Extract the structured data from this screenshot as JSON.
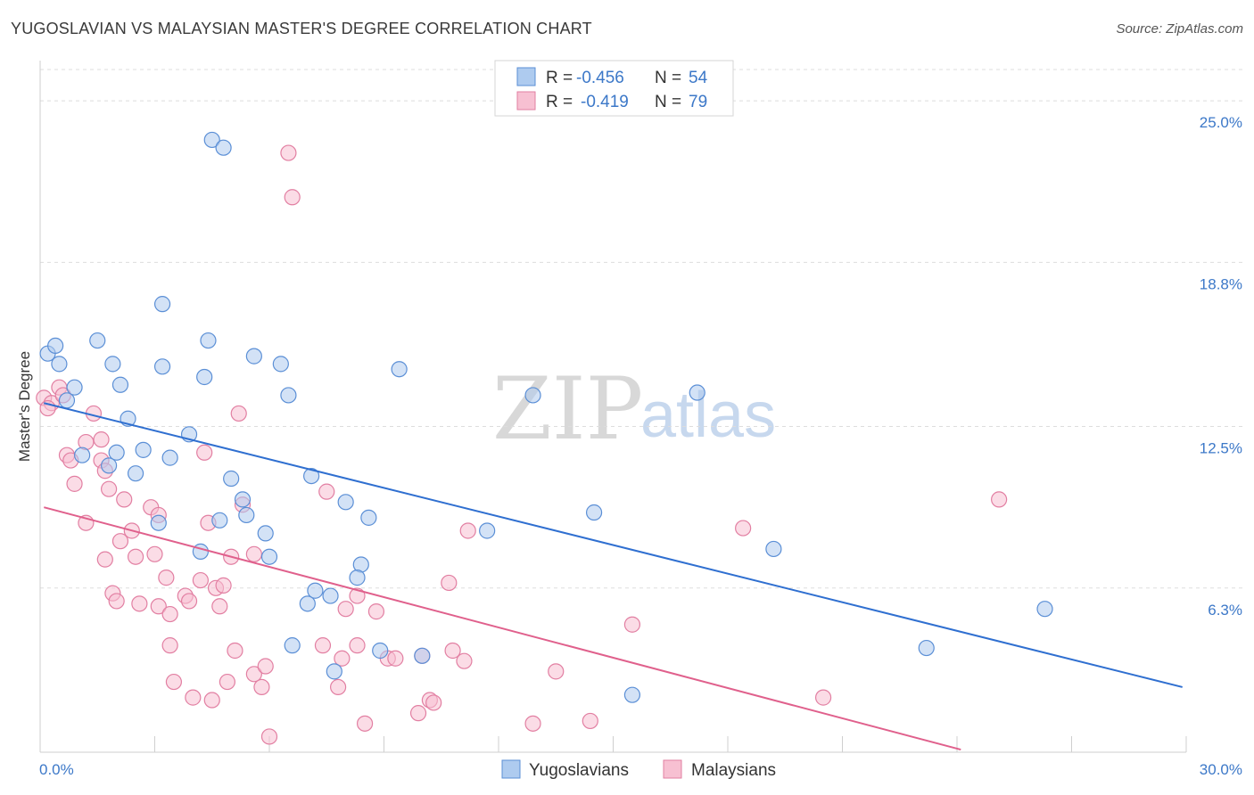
{
  "title": "YUGOSLAVIAN VS MALAYSIAN MASTER'S DEGREE CORRELATION CHART",
  "source": "Source: ZipAtlas.com",
  "watermark": {
    "zip": "ZIP",
    "atlas": "atlas"
  },
  "colors": {
    "blue_fill": "#aecbef",
    "blue_stroke": "#5b8fd6",
    "blue_line": "#2f6fd0",
    "pink_fill": "#f7c0d2",
    "pink_stroke": "#e27fa2",
    "pink_line": "#e0608c",
    "grid": "#dddddd",
    "axis_text": "#3c78c8"
  },
  "legend": {
    "rows": [
      {
        "r_label": "R = ",
        "r_value": "-0.456",
        "n_label": "N = ",
        "n_value": "54"
      },
      {
        "r_label": "R = ",
        "r_value": "-0.419",
        "n_label": "N = ",
        "n_value": "79"
      }
    ]
  },
  "chart_data": {
    "type": "scatter",
    "xlabel": "",
    "ylabel": "Master's Degree",
    "xlim": [
      0,
      30
    ],
    "ylim": [
      0,
      26.2
    ],
    "x_tick_labels": [
      "0.0%",
      "30.0%"
    ],
    "y_ticks": [
      6.3,
      12.5,
      18.8,
      25.0
    ],
    "y_tick_labels": [
      "6.3%",
      "12.5%",
      "18.8%",
      "25.0%"
    ],
    "series": [
      {
        "name": "Yugoslavians",
        "color": "#aecbef",
        "trendline": {
          "x": [
            0.1,
            29.9
          ],
          "y": [
            13.4,
            2.5
          ]
        },
        "points": [
          [
            0.2,
            15.3
          ],
          [
            0.4,
            15.6
          ],
          [
            0.5,
            14.9
          ],
          [
            0.9,
            14.0
          ],
          [
            0.7,
            13.5
          ],
          [
            1.5,
            15.8
          ],
          [
            1.9,
            14.9
          ],
          [
            2.1,
            14.1
          ],
          [
            2.3,
            12.8
          ],
          [
            3.2,
            14.8
          ],
          [
            3.2,
            17.2
          ],
          [
            4.4,
            15.8
          ],
          [
            4.3,
            14.4
          ],
          [
            4.5,
            23.5
          ],
          [
            4.8,
            23.2
          ],
          [
            5.6,
            15.2
          ],
          [
            6.3,
            14.9
          ],
          [
            6.5,
            13.7
          ],
          [
            2.0,
            11.5
          ],
          [
            1.1,
            11.4
          ],
          [
            2.7,
            11.6
          ],
          [
            3.4,
            11.3
          ],
          [
            3.9,
            12.2
          ],
          [
            1.8,
            11.0
          ],
          [
            2.5,
            10.7
          ],
          [
            5.0,
            10.5
          ],
          [
            5.3,
            9.7
          ],
          [
            7.1,
            10.6
          ],
          [
            8.0,
            9.6
          ],
          [
            5.4,
            9.1
          ],
          [
            4.7,
            8.9
          ],
          [
            3.1,
            8.8
          ],
          [
            5.9,
            8.4
          ],
          [
            8.6,
            9.0
          ],
          [
            9.4,
            14.7
          ],
          [
            12.9,
            13.7
          ],
          [
            14.5,
            9.2
          ],
          [
            17.2,
            13.8
          ],
          [
            4.2,
            7.7
          ],
          [
            6.0,
            7.5
          ],
          [
            8.4,
            7.2
          ],
          [
            8.3,
            6.7
          ],
          [
            7.2,
            6.2
          ],
          [
            7.6,
            6.0
          ],
          [
            7.0,
            5.7
          ],
          [
            11.7,
            8.5
          ],
          [
            19.2,
            7.8
          ],
          [
            6.6,
            4.1
          ],
          [
            8.9,
            3.9
          ],
          [
            10.0,
            3.7
          ],
          [
            7.7,
            3.1
          ],
          [
            15.5,
            2.2
          ],
          [
            23.2,
            4.0
          ],
          [
            26.3,
            5.5
          ]
        ]
      },
      {
        "name": "Malaysians",
        "color": "#f7c0d2",
        "trendline": {
          "x": [
            0.1,
            24.1
          ],
          "y": [
            9.4,
            0.1
          ]
        },
        "points": [
          [
            0.1,
            13.6
          ],
          [
            0.3,
            13.4
          ],
          [
            0.5,
            14.0
          ],
          [
            0.6,
            13.7
          ],
          [
            0.7,
            11.4
          ],
          [
            0.9,
            10.3
          ],
          [
            0.8,
            11.2
          ],
          [
            1.2,
            11.9
          ],
          [
            1.4,
            13.0
          ],
          [
            1.6,
            11.2
          ],
          [
            1.6,
            12.0
          ],
          [
            1.7,
            10.8
          ],
          [
            1.8,
            10.1
          ],
          [
            1.2,
            8.8
          ],
          [
            2.2,
            9.7
          ],
          [
            2.1,
            8.1
          ],
          [
            2.4,
            8.5
          ],
          [
            2.5,
            7.5
          ],
          [
            1.7,
            7.4
          ],
          [
            2.9,
            9.4
          ],
          [
            3.1,
            9.1
          ],
          [
            3.0,
            7.6
          ],
          [
            3.3,
            6.7
          ],
          [
            2.6,
            5.7
          ],
          [
            1.9,
            6.1
          ],
          [
            2.0,
            5.8
          ],
          [
            3.1,
            5.6
          ],
          [
            3.4,
            5.3
          ],
          [
            3.8,
            6.0
          ],
          [
            3.9,
            5.8
          ],
          [
            4.2,
            6.6
          ],
          [
            4.4,
            8.8
          ],
          [
            4.3,
            11.5
          ],
          [
            4.6,
            6.3
          ],
          [
            4.8,
            6.4
          ],
          [
            4.7,
            5.6
          ],
          [
            5.0,
            7.5
          ],
          [
            5.3,
            9.5
          ],
          [
            5.6,
            7.6
          ],
          [
            5.1,
            3.9
          ],
          [
            3.4,
            4.1
          ],
          [
            3.5,
            2.7
          ],
          [
            4.0,
            2.1
          ],
          [
            4.5,
            2.0
          ],
          [
            4.9,
            2.7
          ],
          [
            5.6,
            3.0
          ],
          [
            5.8,
            2.5
          ],
          [
            5.9,
            3.3
          ],
          [
            6.0,
            0.6
          ],
          [
            5.2,
            13.0
          ],
          [
            6.5,
            23.0
          ],
          [
            6.6,
            21.3
          ],
          [
            7.5,
            10.0
          ],
          [
            7.4,
            4.1
          ],
          [
            7.8,
            2.5
          ],
          [
            7.9,
            3.6
          ],
          [
            8.0,
            5.5
          ],
          [
            8.3,
            4.1
          ],
          [
            8.3,
            6.0
          ],
          [
            8.8,
            5.4
          ],
          [
            8.5,
            1.1
          ],
          [
            9.1,
            3.6
          ],
          [
            9.3,
            3.6
          ],
          [
            10.0,
            3.7
          ],
          [
            10.2,
            2.0
          ],
          [
            10.3,
            1.9
          ],
          [
            9.9,
            1.5
          ],
          [
            10.8,
            3.9
          ],
          [
            10.7,
            6.5
          ],
          [
            11.1,
            3.5
          ],
          [
            11.2,
            8.5
          ],
          [
            12.9,
            1.1
          ],
          [
            13.5,
            3.1
          ],
          [
            14.4,
            1.2
          ],
          [
            15.5,
            4.9
          ],
          [
            18.4,
            8.6
          ],
          [
            20.5,
            2.1
          ],
          [
            25.1,
            9.7
          ],
          [
            0.2,
            13.2
          ]
        ]
      }
    ]
  }
}
